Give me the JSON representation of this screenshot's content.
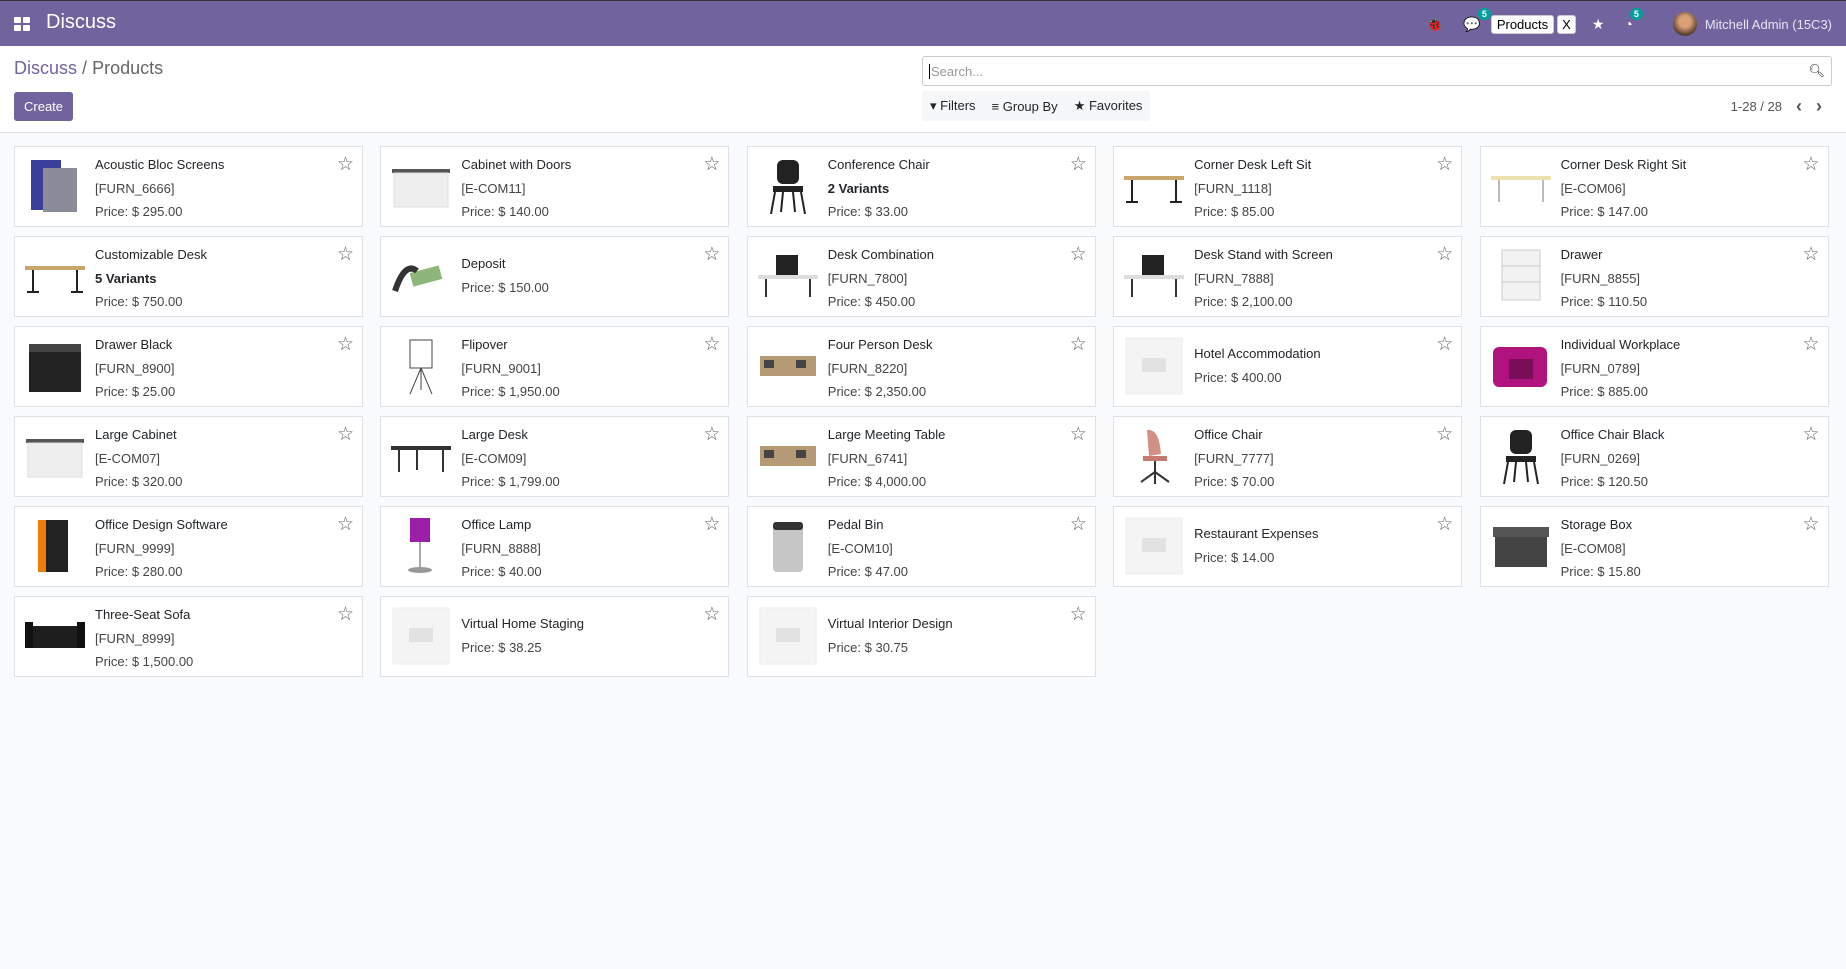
{
  "nav": {
    "app_title": "Discuss",
    "chat_badge": "5",
    "products_tag": "Products",
    "close_tag": "X",
    "activity_badge": "5",
    "user": "Mitchell Admin (15C3)",
    "accent": "#71639e"
  },
  "breadcrumb": {
    "parent": "Discuss",
    "separator": "/",
    "current": "Products"
  },
  "toolbar": {
    "create": "Create",
    "search_placeholder": "Search...",
    "filters": "Filters",
    "group_by": "Group By",
    "favorites": "Favorites",
    "pager": "1-28 / 28"
  },
  "products": [
    {
      "name": "Acoustic Bloc Screens",
      "code": "[FURN_6666]",
      "price": "Price: $ 295.00",
      "img": "screen"
    },
    {
      "name": "Cabinet with Doors",
      "code": "[E-COM11]",
      "price": "Price: $ 140.00",
      "img": "cabinet"
    },
    {
      "name": "Conference Chair",
      "variants": "2 Variants",
      "price": "Price: $ 33.00",
      "img": "chair"
    },
    {
      "name": "Corner Desk Left Sit",
      "code": "[FURN_1118]",
      "price": "Price: $ 85.00",
      "img": "desk"
    },
    {
      "name": "Corner Desk Right Sit",
      "code": "[E-COM06]",
      "price": "Price: $ 147.00",
      "img": "desk-light"
    },
    {
      "name": "Customizable Desk",
      "variants": "5 Variants",
      "price": "Price: $ 750.00",
      "img": "desk"
    },
    {
      "name": "Deposit",
      "price": "Price: $ 150.00",
      "img": "money"
    },
    {
      "name": "Desk Combination",
      "code": "[FURN_7800]",
      "price": "Price: $ 450.00",
      "img": "desk-combo"
    },
    {
      "name": "Desk Stand with Screen",
      "code": "[FURN_7888]",
      "price": "Price: $ 2,100.00",
      "img": "desk-combo"
    },
    {
      "name": "Drawer",
      "code": "[FURN_8855]",
      "price": "Price: $ 110.50",
      "img": "drawer"
    },
    {
      "name": "Drawer Black",
      "code": "[FURN_8900]",
      "price": "Price: $ 25.00",
      "img": "drawer-black"
    },
    {
      "name": "Flipover",
      "code": "[FURN_9001]",
      "price": "Price: $ 1,950.00",
      "img": "flipover"
    },
    {
      "name": "Four Person Desk",
      "code": "[FURN_8220]",
      "price": "Price: $ 2,350.00",
      "img": "office"
    },
    {
      "name": "Hotel Accommodation",
      "price": "Price: $ 400.00",
      "img": "placeholder"
    },
    {
      "name": "Individual Workplace",
      "code": "[FURN_0789]",
      "price": "Price: $ 885.00",
      "img": "magenta"
    },
    {
      "name": "Large Cabinet",
      "code": "[E-COM07]",
      "price": "Price: $ 320.00",
      "img": "cabinet"
    },
    {
      "name": "Large Desk",
      "code": "[E-COM09]",
      "price": "Price: $ 1,799.00",
      "img": "desk-dark"
    },
    {
      "name": "Large Meeting Table",
      "code": "[FURN_6741]",
      "price": "Price: $ 4,000.00",
      "img": "office"
    },
    {
      "name": "Office Chair",
      "code": "[FURN_7777]",
      "price": "Price: $ 70.00",
      "img": "chair-pink"
    },
    {
      "name": "Office Chair Black",
      "code": "[FURN_0269]",
      "price": "Price: $ 120.50",
      "img": "chair"
    },
    {
      "name": "Office Design Software",
      "code": "[FURN_9999]",
      "price": "Price: $ 280.00",
      "img": "software"
    },
    {
      "name": "Office Lamp",
      "code": "[FURN_8888]",
      "price": "Price: $ 40.00",
      "img": "lamp"
    },
    {
      "name": "Pedal Bin",
      "code": "[E-COM10]",
      "price": "Price: $ 47.00",
      "img": "bin"
    },
    {
      "name": "Restaurant Expenses",
      "price": "Price: $ 14.00",
      "img": "placeholder"
    },
    {
      "name": "Storage Box",
      "code": "[E-COM08]",
      "price": "Price: $ 15.80",
      "img": "box"
    },
    {
      "name": "Three-Seat Sofa",
      "code": "[FURN_8999]",
      "price": "Price: $ 1,500.00",
      "img": "sofa"
    },
    {
      "name": "Virtual Home Staging",
      "price": "Price: $ 38.25",
      "img": "placeholder"
    },
    {
      "name": "Virtual Interior Design",
      "price": "Price: $ 30.75",
      "img": "placeholder"
    }
  ]
}
